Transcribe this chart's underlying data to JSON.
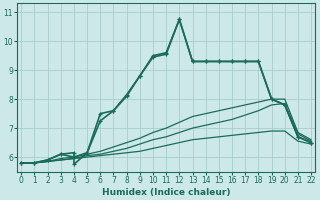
{
  "xlabel": "Humidex (Indice chaleur)",
  "background_color": "#cce8e8",
  "grid_color": "#aacccc",
  "line_color": "#1a6b5a",
  "xlim": [
    -0.3,
    22.3
  ],
  "ylim": [
    5.5,
    11.3
  ],
  "xticks": [
    0,
    1,
    2,
    3,
    4,
    5,
    6,
    7,
    8,
    9,
    10,
    11,
    12,
    13,
    14,
    15,
    16,
    17,
    18,
    19,
    20,
    21,
    22
  ],
  "yticks": [
    6,
    7,
    8,
    9,
    10,
    11
  ],
  "series": [
    {
      "x": [
        0,
        1,
        2,
        3,
        4,
        5,
        6,
        7,
        8,
        9,
        10,
        11,
        12,
        13,
        14,
        15,
        16,
        17,
        18,
        19,
        20,
        21,
        22
      ],
      "y": [
        5.8,
        5.8,
        5.85,
        5.9,
        5.95,
        6.0,
        6.05,
        6.1,
        6.15,
        6.2,
        6.3,
        6.4,
        6.5,
        6.6,
        6.65,
        6.7,
        6.75,
        6.8,
        6.85,
        6.9,
        6.9,
        6.55,
        6.45
      ],
      "marker": false,
      "linewidth": 0.9
    },
    {
      "x": [
        0,
        1,
        2,
        3,
        4,
        5,
        6,
        7,
        8,
        9,
        10,
        11,
        12,
        13,
        14,
        15,
        16,
        17,
        18,
        19,
        20,
        21,
        22
      ],
      "y": [
        5.8,
        5.8,
        5.85,
        5.9,
        5.95,
        6.05,
        6.1,
        6.2,
        6.3,
        6.45,
        6.6,
        6.7,
        6.85,
        7.0,
        7.1,
        7.2,
        7.3,
        7.45,
        7.6,
        7.8,
        7.85,
        6.8,
        6.55
      ],
      "marker": false,
      "linewidth": 0.9
    },
    {
      "x": [
        0,
        1,
        2,
        3,
        4,
        5,
        6,
        7,
        8,
        9,
        10,
        11,
        12,
        13,
        14,
        15,
        16,
        17,
        18,
        19,
        20,
        21,
        22
      ],
      "y": [
        5.8,
        5.8,
        5.85,
        5.95,
        6.0,
        6.1,
        6.2,
        6.35,
        6.5,
        6.65,
        6.85,
        7.0,
        7.2,
        7.4,
        7.5,
        7.6,
        7.7,
        7.8,
        7.9,
        8.0,
        8.0,
        6.85,
        6.6
      ],
      "marker": false,
      "linewidth": 0.9
    },
    {
      "x": [
        0,
        1,
        2,
        3,
        4,
        4,
        5,
        6,
        7,
        8,
        9,
        10,
        11,
        12,
        13,
        14,
        15,
        16,
        17,
        18,
        19,
        20,
        21,
        22
      ],
      "y": [
        5.8,
        5.8,
        5.9,
        6.1,
        6.15,
        5.75,
        6.15,
        7.5,
        7.6,
        8.1,
        8.8,
        9.45,
        9.55,
        10.75,
        9.3,
        9.3,
        9.3,
        9.3,
        9.3,
        9.3,
        8.0,
        7.8,
        6.7,
        6.5
      ],
      "marker": true,
      "linewidth": 1.2
    },
    {
      "x": [
        0,
        1,
        2,
        3,
        4,
        5,
        6,
        7,
        8,
        9,
        10,
        11,
        12,
        13,
        14,
        15,
        16,
        17,
        18,
        19,
        20,
        21,
        22
      ],
      "y": [
        5.8,
        5.8,
        5.9,
        6.1,
        6.0,
        6.15,
        7.25,
        7.6,
        8.15,
        8.8,
        9.5,
        9.6,
        10.75,
        9.3,
        9.3,
        9.3,
        9.3,
        9.3,
        9.3,
        8.0,
        7.8,
        6.7,
        6.5
      ],
      "marker": true,
      "linewidth": 1.2
    }
  ]
}
